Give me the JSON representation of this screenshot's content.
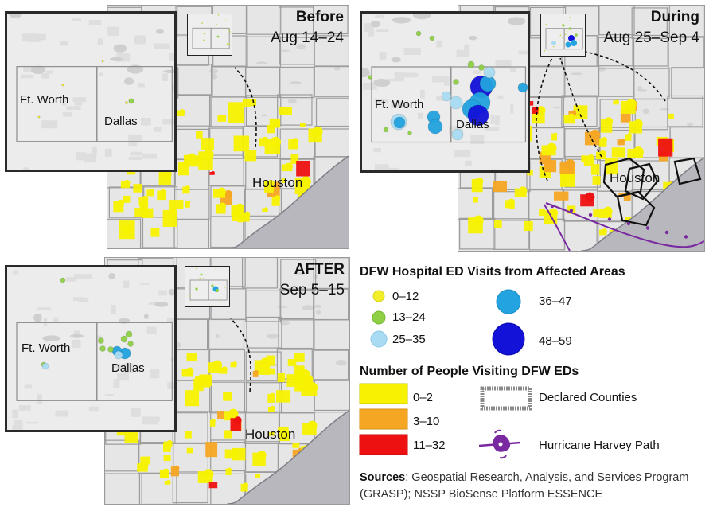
{
  "panels": {
    "before": {
      "title": "Before",
      "dates": "Aug 14–24",
      "city": "Houston"
    },
    "during": {
      "title": "During",
      "dates": "Aug 25–Sep 4",
      "city": "Houston"
    },
    "after": {
      "title": "AFTER",
      "dates": "Sep 5–15",
      "city": "Houston"
    }
  },
  "insets": {
    "fort_worth": "Ft. Worth",
    "dallas": "Dallas"
  },
  "legend": {
    "visits_heading": "DFW Hospital ED Visits from Affected Areas",
    "visits": [
      {
        "label": "0–12",
        "color": "#f2ee2a"
      },
      {
        "label": "13–24",
        "color": "#8fcf45"
      },
      {
        "label": "25–35",
        "color": "#a9dcf3"
      },
      {
        "label": "36–47",
        "color": "#23a3df"
      },
      {
        "label": "48–59",
        "color": "#1212d8"
      }
    ],
    "people_heading": "Number of People Visiting DFW EDs",
    "people": [
      {
        "label": "0–2",
        "color": "#f7f200"
      },
      {
        "label": "3–10",
        "color": "#f5a623"
      },
      {
        "label": "11–32",
        "color": "#ee1111"
      }
    ],
    "declared_counties": "Declared Counties",
    "hurricane_path": "Hurricane Harvey Path",
    "path_color": "#7a2aa0"
  },
  "sources": {
    "label": "Sources",
    "text": ": Geospatial Research, Analysis, and Services Program (GRASP); NSSP BioSense Platform ESSENCE"
  }
}
